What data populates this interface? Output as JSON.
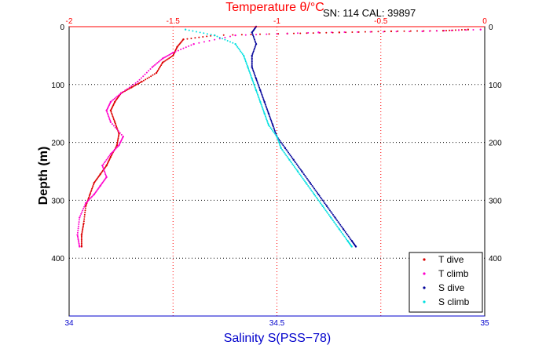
{
  "colors": {
    "temperature_axis": "#ff0000",
    "salinity_axis": "#0000cc",
    "t_dive": "#dd0000",
    "t_climb": "#ff00cc",
    "s_dive": "#000099",
    "s_climb": "#00e0e0",
    "grid": "#000000"
  },
  "header": {
    "top_axis_label": "Temperature θ/°C",
    "serial_text": "SN: 114  CAL: 39897"
  },
  "chart_data": {
    "type": "scatter",
    "title": "",
    "ylabel": "Depth (m)",
    "xlabel_bottom": "Salinity S(PSS−78)",
    "xlabel_top": "Temperature θ/°C",
    "ylim": [
      0,
      500
    ],
    "y_reversed": true,
    "x_bottom_lim": [
      34,
      35
    ],
    "x_top_lim": [
      -2,
      0
    ],
    "y_ticks": [
      "0",
      "100",
      "200",
      "300",
      "400"
    ],
    "x_bottom_ticks": [
      "34",
      "34.5",
      "35"
    ],
    "x_top_ticks": [
      "-2",
      "-1.5",
      "-1",
      "-0.5",
      "0"
    ],
    "grid": true,
    "legend_position": "bottom-right",
    "series": [
      {
        "name": "T dive",
        "axis": "top",
        "points": [
          [
            -0.08,
            5
          ],
          [
            -0.2,
            7
          ],
          [
            -0.45,
            8
          ],
          [
            -0.7,
            10
          ],
          [
            -0.95,
            12
          ],
          [
            -1.3,
            15
          ],
          [
            -1.45,
            22
          ],
          [
            -1.48,
            35
          ],
          [
            -1.5,
            50
          ],
          [
            -1.55,
            62
          ],
          [
            -1.58,
            80
          ],
          [
            -1.65,
            95
          ],
          [
            -1.7,
            105
          ],
          [
            -1.75,
            115
          ],
          [
            -1.78,
            130
          ],
          [
            -1.8,
            145
          ],
          [
            -1.78,
            165
          ],
          [
            -1.76,
            185
          ],
          [
            -1.77,
            205
          ],
          [
            -1.8,
            225
          ],
          [
            -1.82,
            240
          ],
          [
            -1.85,
            255
          ],
          [
            -1.88,
            270
          ],
          [
            -1.9,
            290
          ],
          [
            -1.92,
            310
          ],
          [
            -1.93,
            340
          ],
          [
            -1.94,
            360
          ],
          [
            -1.94,
            380
          ]
        ]
      },
      {
        "name": "T climb",
        "axis": "top",
        "points": [
          [
            -0.02,
            5
          ],
          [
            -0.3,
            8
          ],
          [
            -0.8,
            10
          ],
          [
            -1.2,
            15
          ],
          [
            -1.4,
            30
          ],
          [
            -1.5,
            45
          ],
          [
            -1.55,
            55
          ],
          [
            -1.6,
            70
          ],
          [
            -1.67,
            95
          ],
          [
            -1.75,
            115
          ],
          [
            -1.8,
            130
          ],
          [
            -1.82,
            145
          ],
          [
            -1.8,
            165
          ],
          [
            -1.74,
            190
          ],
          [
            -1.76,
            205
          ],
          [
            -1.8,
            220
          ],
          [
            -1.84,
            240
          ],
          [
            -1.82,
            260
          ],
          [
            -1.85,
            275
          ],
          [
            -1.88,
            290
          ],
          [
            -1.92,
            305
          ],
          [
            -1.95,
            330
          ],
          [
            -1.96,
            360
          ],
          [
            -1.95,
            380
          ]
        ]
      },
      {
        "name": "S dive",
        "axis": "bottom",
        "points": [
          [
            34.45,
            0
          ],
          [
            34.44,
            10
          ],
          [
            34.45,
            30
          ],
          [
            34.44,
            50
          ],
          [
            34.44,
            70
          ],
          [
            34.45,
            90
          ],
          [
            34.46,
            110
          ],
          [
            34.47,
            130
          ],
          [
            34.48,
            150
          ],
          [
            34.49,
            170
          ],
          [
            34.5,
            190
          ],
          [
            34.52,
            210
          ],
          [
            34.54,
            230
          ],
          [
            34.56,
            250
          ],
          [
            34.58,
            270
          ],
          [
            34.6,
            290
          ],
          [
            34.62,
            310
          ],
          [
            34.64,
            330
          ],
          [
            34.66,
            350
          ],
          [
            34.68,
            370
          ],
          [
            34.69,
            380
          ]
        ]
      },
      {
        "name": "S climb",
        "axis": "bottom",
        "points": [
          [
            34.28,
            5
          ],
          [
            34.35,
            15
          ],
          [
            34.4,
            30
          ],
          [
            34.42,
            50
          ],
          [
            34.43,
            70
          ],
          [
            34.44,
            90
          ],
          [
            34.45,
            110
          ],
          [
            34.46,
            130
          ],
          [
            34.47,
            150
          ],
          [
            34.48,
            170
          ],
          [
            34.5,
            190
          ],
          [
            34.51,
            210
          ],
          [
            34.53,
            230
          ],
          [
            34.55,
            250
          ],
          [
            34.57,
            270
          ],
          [
            34.59,
            290
          ],
          [
            34.61,
            310
          ],
          [
            34.63,
            330
          ],
          [
            34.65,
            350
          ],
          [
            34.67,
            370
          ],
          [
            34.68,
            380
          ]
        ]
      }
    ]
  }
}
